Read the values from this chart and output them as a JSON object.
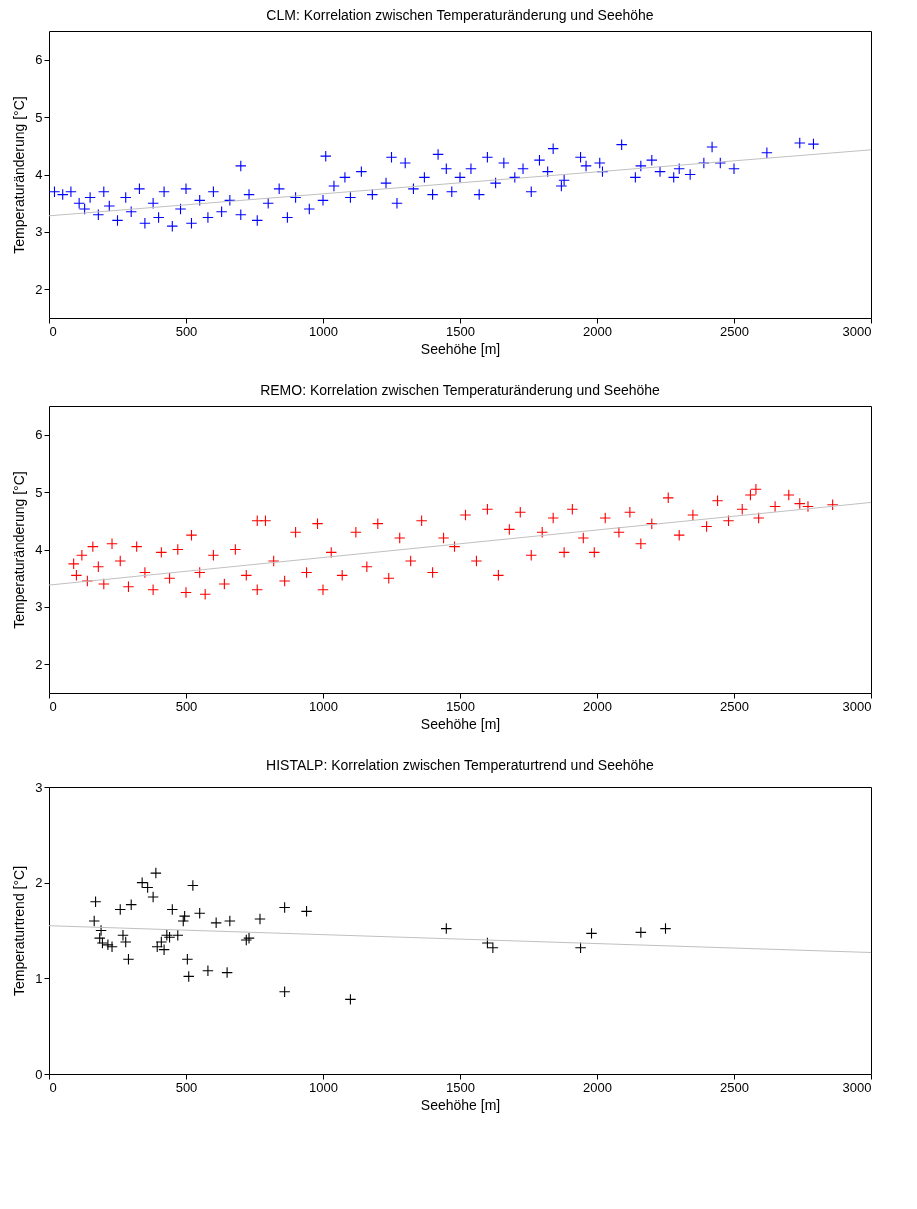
{
  "chart_data": [
    {
      "type": "scatter",
      "title": "CLM: Korrelation zwischen Temperaturänderung und Seehöhe",
      "xlabel": "Seehöhe [m]",
      "ylabel": "Temperaturänderung [°C]",
      "xlim": [
        0,
        3000
      ],
      "xticks": [
        0,
        500,
        1000,
        1500,
        2000,
        2500,
        3000
      ],
      "ylim": [
        1.5,
        6.5
      ],
      "yticks": [
        2,
        3,
        4,
        5,
        6
      ],
      "grid": false,
      "series": [
        {
          "marker": "cross",
          "color": "#0000ff",
          "x": [
            20,
            50,
            80,
            110,
            130,
            150,
            180,
            200,
            220,
            250,
            280,
            300,
            330,
            350,
            380,
            400,
            420,
            450,
            480,
            500,
            520,
            550,
            580,
            600,
            630,
            660,
            700,
            700,
            730,
            760,
            800,
            840,
            870,
            900,
            950,
            1000,
            1010,
            1040,
            1080,
            1100,
            1140,
            1180,
            1230,
            1250,
            1270,
            1300,
            1330,
            1370,
            1400,
            1420,
            1450,
            1470,
            1500,
            1540,
            1570,
            1600,
            1630,
            1660,
            1700,
            1730,
            1760,
            1790,
            1820,
            1840,
            1870,
            1880,
            1940,
            1960,
            2010,
            2020,
            2090,
            2140,
            2160,
            2200,
            2230,
            2280,
            2300,
            2340,
            2390,
            2420,
            2450,
            2500,
            2620,
            2740,
            2790
          ],
          "values": [
            3.7,
            3.65,
            3.7,
            3.5,
            3.4,
            3.6,
            3.3,
            3.7,
            3.45,
            3.2,
            3.6,
            3.35,
            3.75,
            3.15,
            3.5,
            3.25,
            3.7,
            3.1,
            3.4,
            3.75,
            3.15,
            3.55,
            3.25,
            3.7,
            3.35,
            3.55,
            4.15,
            3.3,
            3.65,
            3.2,
            3.5,
            3.75,
            3.25,
            3.6,
            3.4,
            3.55,
            4.32,
            3.8,
            3.95,
            3.6,
            4.05,
            3.65,
            3.85,
            4.3,
            3.5,
            4.2,
            3.75,
            3.95,
            3.65,
            4.35,
            4.1,
            3.7,
            3.95,
            4.1,
            3.65,
            4.3,
            3.85,
            4.2,
            3.95,
            4.1,
            3.7,
            4.25,
            4.05,
            4.45,
            3.8,
            3.9,
            4.3,
            4.15,
            4.2,
            4.05,
            4.52,
            3.95,
            4.15,
            4.25,
            4.05,
            3.95,
            4.1,
            4.0,
            4.2,
            4.48,
            4.2,
            4.1,
            4.38,
            4.55,
            4.53
          ]
        },
        {
          "type": "line",
          "color": "#c0c0c0",
          "line_style": "solid",
          "x": [
            0,
            3000
          ],
          "values": [
            3.28,
            4.43
          ]
        }
      ]
    },
    {
      "type": "scatter",
      "title": "REMO: Korrelation zwischen Temperaturänderung und Seehöhe",
      "xlabel": "Seehöhe [m]",
      "ylabel": "Temperaturänderung [°C]",
      "xlim": [
        0,
        3000
      ],
      "xticks": [
        0,
        500,
        1000,
        1500,
        2000,
        2500,
        3000
      ],
      "ylim": [
        1.5,
        6.5
      ],
      "yticks": [
        2,
        3,
        4,
        5,
        6
      ],
      "grid": false,
      "series": [
        {
          "marker": "cross",
          "color": "#ff0000",
          "x": [
            90,
            100,
            120,
            140,
            160,
            180,
            200,
            230,
            260,
            290,
            320,
            350,
            380,
            410,
            440,
            470,
            500,
            520,
            550,
            570,
            600,
            640,
            680,
            720,
            760,
            760,
            790,
            820,
            860,
            900,
            940,
            980,
            1000,
            1030,
            1070,
            1120,
            1160,
            1200,
            1240,
            1280,
            1320,
            1360,
            1400,
            1440,
            1480,
            1520,
            1560,
            1600,
            1640,
            1680,
            1720,
            1760,
            1800,
            1840,
            1880,
            1910,
            1950,
            1990,
            2030,
            2080,
            2120,
            2160,
            2200,
            2260,
            2300,
            2350,
            2400,
            2440,
            2480,
            2530,
            2560,
            2580,
            2590,
            2650,
            2700,
            2740,
            2770,
            2860
          ],
          "values": [
            3.75,
            3.55,
            3.9,
            3.45,
            4.05,
            3.7,
            3.4,
            4.1,
            3.8,
            3.35,
            4.05,
            3.6,
            3.3,
            3.95,
            3.5,
            4.0,
            3.25,
            4.25,
            3.6,
            3.22,
            3.9,
            3.4,
            4.0,
            3.55,
            3.3,
            4.5,
            4.5,
            3.8,
            3.45,
            4.3,
            3.6,
            4.45,
            3.3,
            3.95,
            3.55,
            4.3,
            3.7,
            4.45,
            3.5,
            4.2,
            3.8,
            4.5,
            3.6,
            4.2,
            4.05,
            4.6,
            3.8,
            4.7,
            3.55,
            4.35,
            4.65,
            3.9,
            4.3,
            4.55,
            3.95,
            4.7,
            4.2,
            3.95,
            4.55,
            4.3,
            4.65,
            4.1,
            4.45,
            4.9,
            4.25,
            4.6,
            4.4,
            4.85,
            4.5,
            4.7,
            4.95,
            5.05,
            4.55,
            4.75,
            4.95,
            4.8,
            4.75,
            4.78
          ]
        },
        {
          "type": "line",
          "color": "#c0c0c0",
          "line_style": "solid",
          "x": [
            0,
            3000
          ],
          "values": [
            3.38,
            4.82
          ]
        }
      ]
    },
    {
      "type": "scatter",
      "title": "HISTALP: Korrelation zwischen Temperaturtrend und Seehöhe",
      "xlabel": "Seehöhe [m]",
      "ylabel": "Temperaturtrend [°C]",
      "xlim": [
        0,
        3000
      ],
      "xticks": [
        0,
        500,
        1000,
        1500,
        2000,
        2500,
        3000
      ],
      "ylim": [
        0,
        3
      ],
      "yticks": [
        0,
        1,
        2,
        3
      ],
      "grid": false,
      "series": [
        {
          "marker": "cross",
          "color": "#000000",
          "x": [
            170,
            165,
            185,
            190,
            195,
            215,
            230,
            260,
            270,
            280,
            290,
            300,
            340,
            360,
            380,
            390,
            395,
            410,
            420,
            430,
            440,
            450,
            470,
            490,
            495,
            505,
            510,
            525,
            550,
            580,
            610,
            650,
            660,
            720,
            730,
            770,
            860,
            860,
            940,
            1100,
            1450,
            1600,
            1620,
            1940,
            1980,
            2160,
            2250
          ],
          "values": [
            1.8,
            1.6,
            1.42,
            1.5,
            1.37,
            1.35,
            1.33,
            1.72,
            1.45,
            1.38,
            1.2,
            1.77,
            2.0,
            1.95,
            1.85,
            2.1,
            1.33,
            1.38,
            1.3,
            1.45,
            1.43,
            1.72,
            1.45,
            1.6,
            1.65,
            1.2,
            1.02,
            1.97,
            1.68,
            1.08,
            1.58,
            1.06,
            1.6,
            1.4,
            1.42,
            1.62,
            1.74,
            0.86,
            1.7,
            0.78,
            1.52,
            1.37,
            1.32,
            1.32,
            1.47,
            1.48,
            1.52
          ]
        },
        {
          "type": "line",
          "color": "#c0c0c0",
          "line_style": "solid",
          "x": [
            0,
            3000
          ],
          "values": [
            1.55,
            1.27
          ]
        }
      ]
    }
  ]
}
